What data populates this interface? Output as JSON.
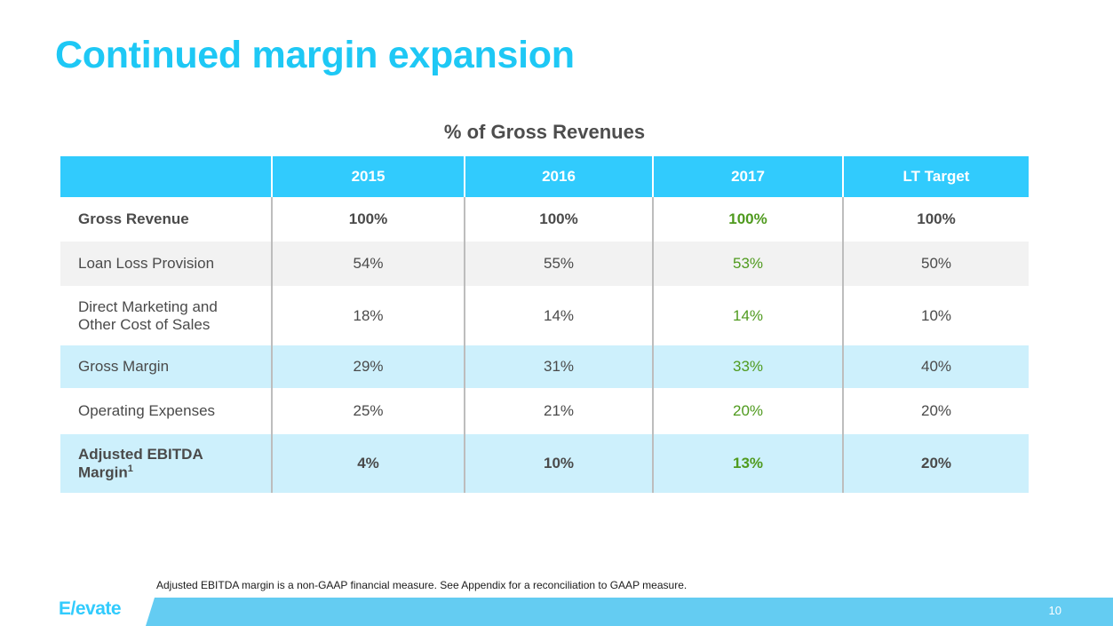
{
  "title": "Continued margin expansion",
  "subtitle": "% of Gross Revenues",
  "table": {
    "headers": [
      "",
      "2015",
      "2016",
      "2017",
      "LT Target"
    ],
    "rows": [
      {
        "label": "Gross Revenue",
        "values": [
          "100%",
          "100%",
          "100%",
          "100%"
        ]
      },
      {
        "label": "Loan Loss Provision",
        "values": [
          "54%",
          "55%",
          "53%",
          "50%"
        ]
      },
      {
        "label_line1": "Direct Marketing and",
        "label_line2": "Other Cost of Sales",
        "values": [
          "18%",
          "14%",
          "14%",
          "10%"
        ]
      },
      {
        "label": "Gross Margin",
        "values": [
          "29%",
          "31%",
          "33%",
          "40%"
        ]
      },
      {
        "label": "Operating Expenses",
        "values": [
          "25%",
          "21%",
          "20%",
          "20%"
        ]
      },
      {
        "label_line1": "Adjusted EBITDA",
        "label_line2": "Margin",
        "footnote_marker": "1",
        "values": [
          "4%",
          "10%",
          "13%",
          "20%"
        ]
      }
    ],
    "highlight_column": "2017",
    "colors": {
      "header_bg": "#31cbfd",
      "highlight_text": "#4f9a1e",
      "blue_row": "#cdf0fc",
      "grey_row": "#f2f2f2"
    }
  },
  "footnote": "Adjusted EBITDA margin is a non-GAAP financial measure. See Appendix for a reconciliation to GAAP measure.",
  "footer": {
    "logo": "E/evate",
    "page_number": "10"
  },
  "colors": {
    "title": "#1ec8f5",
    "footer_bar": "#64ccf2"
  }
}
